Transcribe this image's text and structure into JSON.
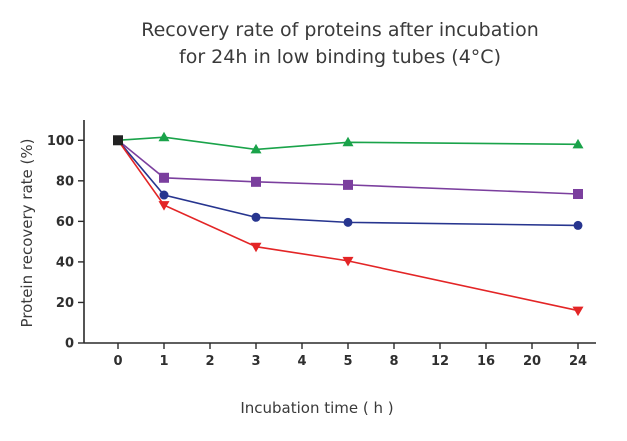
{
  "chart_data": {
    "type": "line",
    "title_lines": [
      "Recovery rate of proteins after incubation",
      "for 24h in low binding tubes (4°C)"
    ],
    "xlabel": "Incubation time ( h )",
    "ylabel": "Protein recovery rate (%)",
    "x_ticks": [
      "0",
      "1",
      "2",
      "3",
      "4",
      "5",
      "8",
      "12",
      "16",
      "20",
      "24"
    ],
    "y_ticks": [
      "0",
      "20",
      "40",
      "60",
      "80",
      "100"
    ],
    "ylim": [
      0,
      110
    ],
    "series": [
      {
        "name": "green-triangle-series",
        "color": "#1aa34a",
        "marker": "triangle-up",
        "points": [
          {
            "x": "0",
            "y": 100
          },
          {
            "x": "1",
            "y": 101.5
          },
          {
            "x": "3",
            "y": 95.5
          },
          {
            "x": "5",
            "y": 99
          },
          {
            "x": "24",
            "y": 98
          }
        ]
      },
      {
        "name": "purple-square-series",
        "color": "#7b3f9e",
        "marker": "square",
        "points": [
          {
            "x": "0",
            "y": 100
          },
          {
            "x": "1",
            "y": 81.5
          },
          {
            "x": "3",
            "y": 79.5
          },
          {
            "x": "5",
            "y": 78
          },
          {
            "x": "24",
            "y": 73.5
          }
        ]
      },
      {
        "name": "blue-circle-series",
        "color": "#27358f",
        "marker": "circle",
        "points": [
          {
            "x": "0",
            "y": 100
          },
          {
            "x": "1",
            "y": 73
          },
          {
            "x": "3",
            "y": 62
          },
          {
            "x": "5",
            "y": 59.5
          },
          {
            "x": "24",
            "y": 58
          }
        ]
      },
      {
        "name": "red-triangle-down-series",
        "color": "#e32526",
        "marker": "triangle-down",
        "points": [
          {
            "x": "0",
            "y": 100
          },
          {
            "x": "1",
            "y": 68
          },
          {
            "x": "3",
            "y": 47.5
          },
          {
            "x": "5",
            "y": 40.5
          },
          {
            "x": "24",
            "y": 16
          }
        ]
      }
    ],
    "start_point": {
      "x": "0",
      "y": 100,
      "color": "#222222",
      "marker": "square"
    },
    "grid": false,
    "legend": "none"
  }
}
